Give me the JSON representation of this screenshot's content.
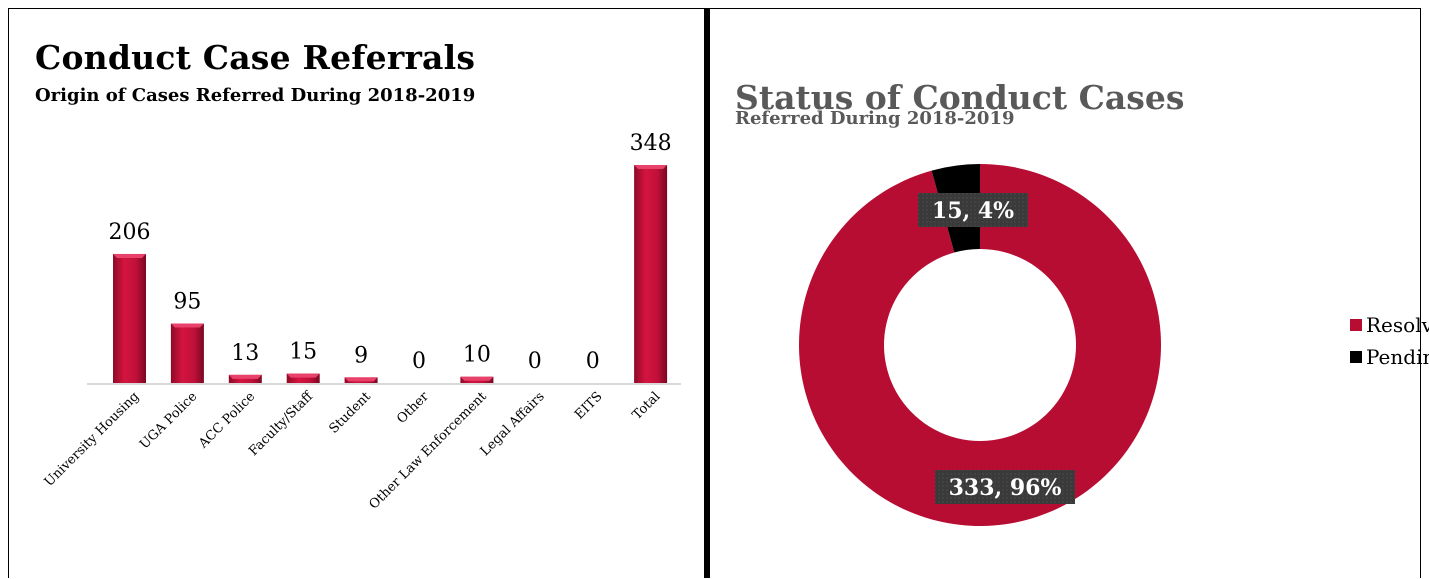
{
  "left_chart": {
    "title": "Conduct Case Referrals",
    "subtitle": "Origin of Cases Referred During 2018-2019"
  },
  "right_chart": {
    "title": "Status of Conduct Cases",
    "subtitle": "Referred During 2018-2019",
    "legend": [
      "Resolved",
      "Pending"
    ]
  },
  "colors": {
    "bar": "#c0103a",
    "resolved": "#b80d33",
    "pending": "#000000",
    "label_box": "#3a3a3a"
  },
  "chart_data": [
    {
      "type": "bar",
      "title": "Conduct Case Referrals",
      "subtitle": "Origin of Cases Referred During 2018-2019",
      "categories": [
        "University Housing",
        "UGA Police",
        "ACC Police",
        "Faculty/Staff",
        "Student",
        "Other",
        "Other Law Enforcement",
        "Legal Affairs",
        "EITS",
        "Total"
      ],
      "values": [
        206,
        95,
        13,
        15,
        9,
        0,
        10,
        0,
        0,
        348
      ],
      "data_labels": [
        "206",
        "95",
        "13",
        "15",
        "9",
        "0",
        "10",
        "0",
        "0",
        "348"
      ],
      "ylim": [
        0,
        348
      ],
      "grid": false
    },
    {
      "type": "pie",
      "subtype": "doughnut",
      "title": "Status of Conduct Cases",
      "subtitle": "Referred During 2018-2019",
      "categories": [
        "Resolved",
        "Pending"
      ],
      "values": [
        333,
        15
      ],
      "percents": [
        96,
        4
      ],
      "data_labels": [
        "333, 96%",
        "15, 4%"
      ],
      "legend_position": "right"
    }
  ]
}
